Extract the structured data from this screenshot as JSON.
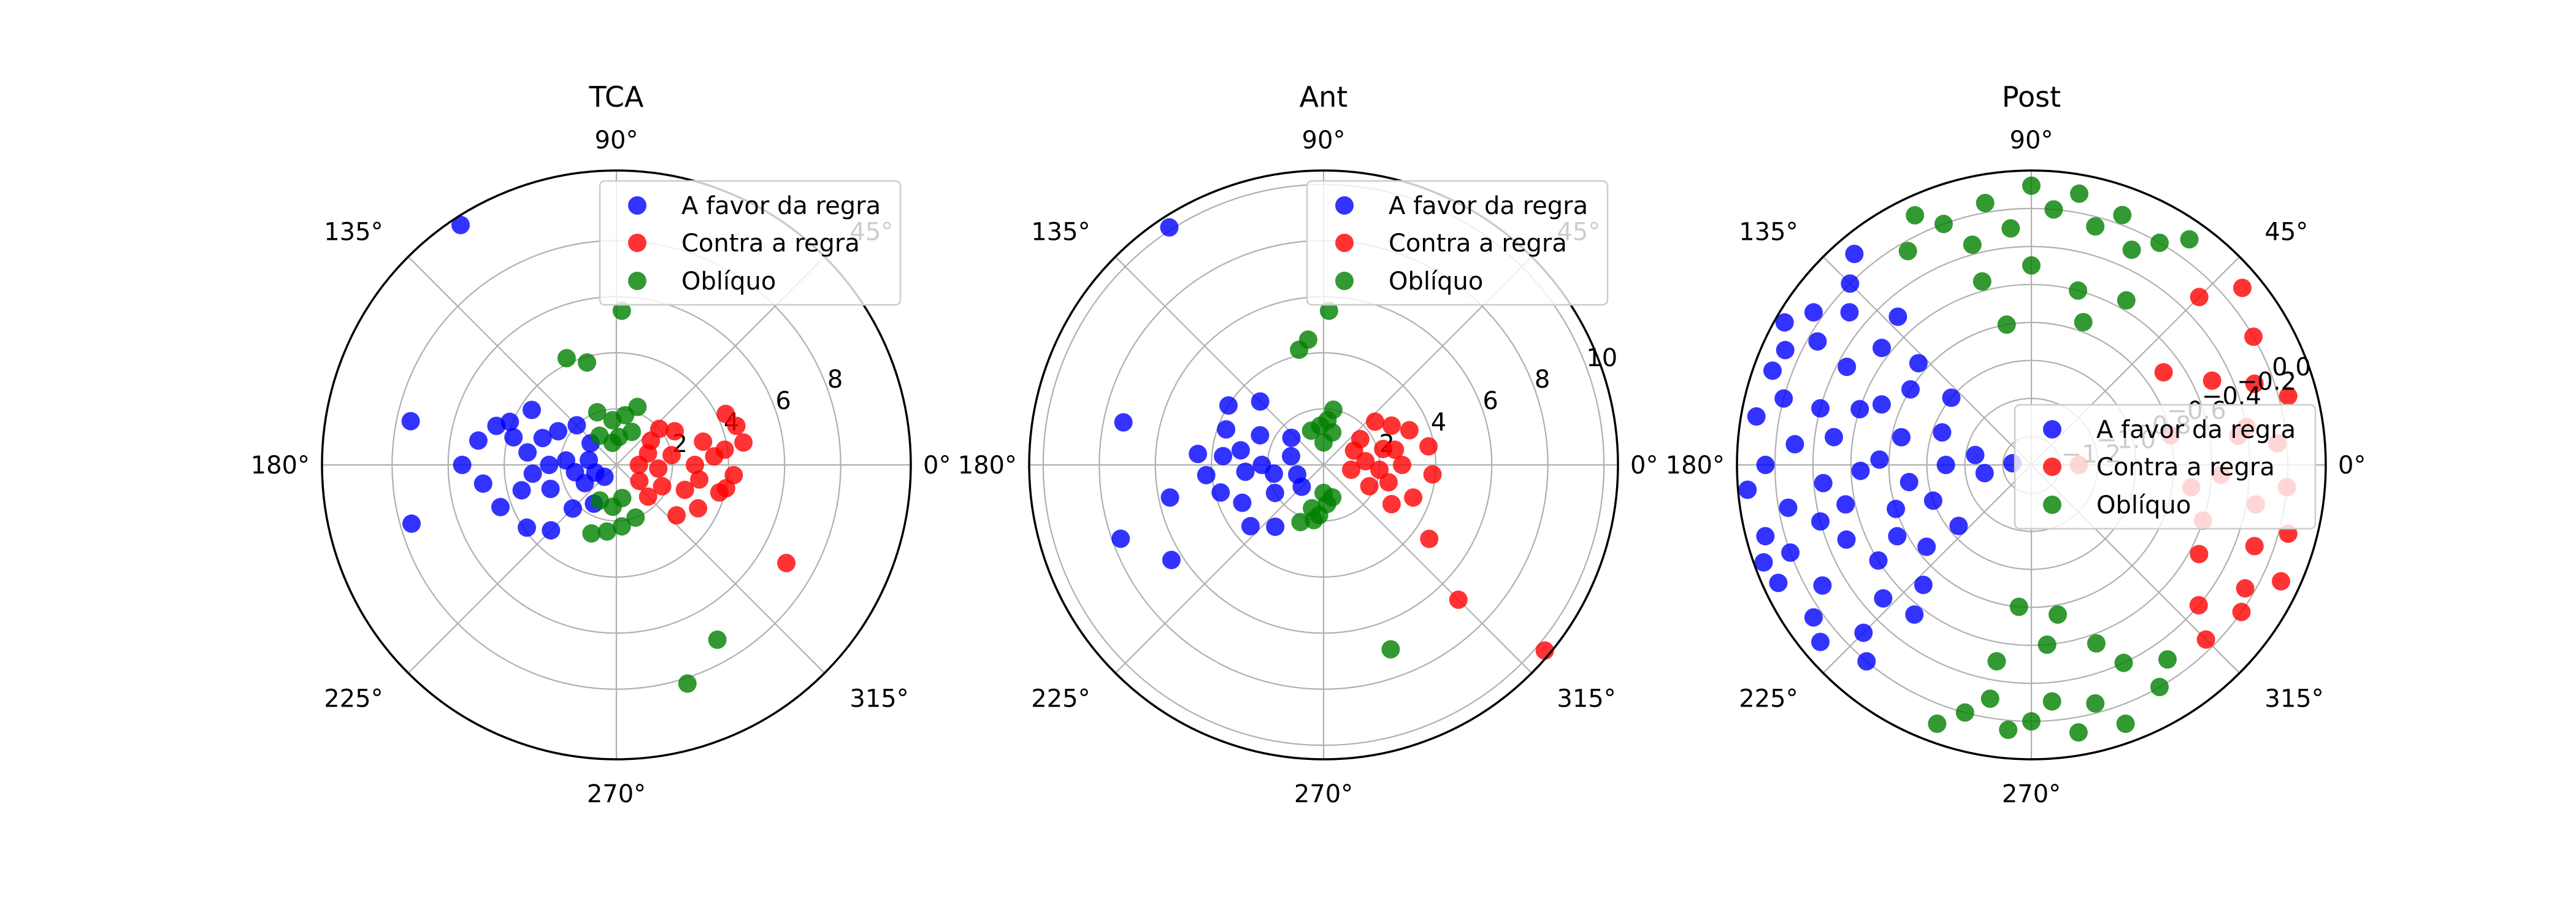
{
  "figure": {
    "background": "#ffffff"
  },
  "legend_labels": [
    "A favor da regra",
    "Contra a regra",
    "Oblíquo"
  ],
  "colors": {
    "A favor da regra": "#0000ff",
    "Contra a regra": "#ff0000",
    "Oblíquo": "#008000"
  },
  "angle_ticks": [
    "0°",
    "45°",
    "90°",
    "135°",
    "180°",
    "225°",
    "270°",
    "315°"
  ],
  "chart_data": [
    {
      "type": "scatter",
      "projection": "polar",
      "title": "TCA",
      "rlim": [
        0,
        10.5
      ],
      "r_ticks": [
        "2",
        "4",
        "6",
        "8"
      ],
      "r_tick_values": [
        2,
        4,
        6,
        8
      ],
      "grid": true,
      "legend_position": "upper right",
      "series": [
        {
          "name": "A favor da regra",
          "points": [
            [
              123,
              10.2
            ],
            [
              168,
              7.5
            ],
            [
              196,
              7.6
            ],
            [
              162,
              4.5
            ],
            [
              147,
              3.6
            ],
            [
              158,
              4.1
            ],
            [
              170,
              5.0
            ],
            [
              180,
              5.5
            ],
            [
              188,
              4.8
            ],
            [
              200,
              4.4
            ],
            [
              215,
              3.9
            ],
            [
              225,
              3.3
            ],
            [
              172,
              3.2
            ],
            [
              186,
              3.0
            ],
            [
              200,
              2.5
            ],
            [
              160,
              2.8
            ],
            [
              150,
              2.4
            ],
            [
              135,
              2.0
            ],
            [
              225,
              2.2
            ],
            [
              240,
              1.6
            ],
            [
              175,
              1.8
            ],
            [
              190,
              1.5
            ],
            [
              210,
              1.3
            ],
            [
              140,
              1.2
            ],
            [
              170,
              1.0
            ],
            [
              200,
              0.8
            ],
            [
              225,
              0.6
            ],
            [
              180,
              2.4
            ],
            [
              195,
              3.5
            ],
            [
              165,
              3.8
            ]
          ]
        },
        {
          "name": "Contra a regra",
          "points": [
            [
              25,
              4.3
            ],
            [
              18,
              4.5
            ],
            [
              10,
              4.6
            ],
            [
              -5,
              4.2
            ],
            [
              -15,
              3.8
            ],
            [
              -28,
              3.3
            ],
            [
              -40,
              2.8
            ],
            [
              -30,
              7.0
            ],
            [
              5,
              3.5
            ],
            [
              15,
              3.2
            ],
            [
              -10,
              3.0
            ],
            [
              -20,
              2.6
            ],
            [
              30,
              2.4
            ],
            [
              40,
              2.0
            ],
            [
              0,
              2.8
            ],
            [
              10,
              2.0
            ],
            [
              -5,
              1.5
            ],
            [
              -25,
              1.8
            ],
            [
              20,
              1.2
            ],
            [
              -35,
              1.0
            ],
            [
              0,
              0.8
            ],
            [
              35,
              1.5
            ],
            [
              -45,
              1.6
            ],
            [
              8,
              3.9
            ],
            [
              -12,
              4.0
            ]
          ]
        },
        {
          "name": "Oblíquo",
          "points": [
            [
              88,
              5.5
            ],
            [
              115,
              4.2
            ],
            [
              106,
              3.8
            ],
            [
              80,
              1.8
            ],
            [
              95,
              1.6
            ],
            [
              70,
              2.2
            ],
            [
              110,
              2.0
            ],
            [
              250,
              2.6
            ],
            [
              262,
              2.4
            ],
            [
              275,
              2.2
            ],
            [
              290,
              2.0
            ],
            [
              300,
              7.2
            ],
            [
              288,
              8.2
            ],
            [
              85,
              1.0
            ],
            [
              100,
              0.8
            ],
            [
              265,
              1.5
            ],
            [
              280,
              1.2
            ],
            [
              65,
              1.3
            ],
            [
              120,
              1.2
            ],
            [
              245,
              1.4
            ]
          ]
        }
      ]
    },
    {
      "type": "scatter",
      "projection": "polar",
      "title": "Ant",
      "rlim": [
        0,
        10.5
      ],
      "r_ticks": [
        "2",
        "4",
        "6",
        "8",
        "10"
      ],
      "r_tick_values": [
        2,
        4,
        6,
        8,
        10
      ],
      "grid": true,
      "legend_position": "upper right",
      "series": [
        {
          "name": "A favor da regra",
          "points": [
            [
              123,
              10.1
            ],
            [
              168,
              7.3
            ],
            [
              200,
              7.7
            ],
            [
              212,
              6.4
            ],
            [
              192,
              5.6
            ],
            [
              175,
              4.5
            ],
            [
              160,
              3.7
            ],
            [
              148,
              4.0
            ],
            [
              135,
              3.2
            ],
            [
              185,
              4.2
            ],
            [
              195,
              3.8
            ],
            [
              205,
              3.2
            ],
            [
              220,
              3.4
            ],
            [
              232,
              2.8
            ],
            [
              170,
              3.0
            ],
            [
              155,
              2.5
            ],
            [
              180,
              2.2
            ],
            [
              190,
              1.8
            ],
            [
              210,
              2.0
            ],
            [
              140,
              1.5
            ],
            [
              165,
              1.2
            ],
            [
              200,
              1.0
            ],
            [
              225,
              1.1
            ],
            [
              175,
              3.6
            ],
            [
              185,
              2.8
            ]
          ]
        },
        {
          "name": "Contra a regra",
          "points": [
            [
              -40,
              10.3
            ],
            [
              -45,
              6.8
            ],
            [
              -35,
              4.6
            ],
            [
              -20,
              3.4
            ],
            [
              -5,
              3.9
            ],
            [
              10,
              3.8
            ],
            [
              22,
              3.3
            ],
            [
              30,
              2.8
            ],
            [
              40,
              2.4
            ],
            [
              0,
              2.8
            ],
            [
              15,
              2.2
            ],
            [
              -15,
              2.4
            ],
            [
              -25,
              1.8
            ],
            [
              5,
              1.5
            ],
            [
              25,
              1.2
            ],
            [
              -10,
              1.0
            ],
            [
              35,
              1.6
            ],
            [
              -30,
              2.8
            ],
            [
              12,
              2.6
            ],
            [
              -5,
              2.0
            ]
          ]
        },
        {
          "name": "Oblíquo",
          "points": [
            [
              88,
              5.5
            ],
            [
              97,
              4.5
            ],
            [
              102,
              4.2
            ],
            [
              85,
              1.6
            ],
            [
              95,
              1.4
            ],
            [
              75,
              1.2
            ],
            [
              110,
              1.3
            ],
            [
              255,
              1.6
            ],
            [
              265,
              1.8
            ],
            [
              275,
              1.4
            ],
            [
              285,
              1.2
            ],
            [
              290,
              7.0
            ],
            [
              248,
              2.2
            ],
            [
              260,
              2.0
            ],
            [
              90,
              0.8
            ],
            [
              80,
              2.0
            ],
            [
              270,
              1.0
            ]
          ]
        }
      ]
    },
    {
      "type": "scatter",
      "projection": "polar",
      "title": "Post",
      "rlim": [
        -1.35,
        0.2
      ],
      "r_ticks": [
        "−1.2",
        "−1.0",
        "−0.8",
        "−0.6",
        "−0.4",
        "−0.2",
        "0.0"
      ],
      "r_tick_values": [
        -1.2,
        -1.0,
        -0.8,
        -0.6,
        -0.4,
        -0.2,
        0.0
      ],
      "grid": true,
      "legend_position": "center right",
      "series": [
        {
          "name": "A favor da regra",
          "points": [
            [
              130,
              0.1
            ],
            [
              135,
              0.0
            ],
            [
              140,
              -0.1
            ],
            [
              145,
              0.05
            ],
            [
              150,
              -0.05
            ],
            [
              155,
              0.08
            ],
            [
              160,
              0.1
            ],
            [
              165,
              0.0
            ],
            [
              170,
              0.12
            ],
            [
              175,
              -0.1
            ],
            [
              180,
              0.05
            ],
            [
              185,
              0.15
            ],
            [
              190,
              -0.05
            ],
            [
              195,
              0.1
            ],
            [
              200,
              0.0
            ],
            [
              205,
              0.12
            ],
            [
              210,
              -0.08
            ],
            [
              215,
              0.05
            ],
            [
              220,
              0.1
            ],
            [
              225,
              -0.1
            ],
            [
              230,
              0.0
            ],
            [
              132,
              -0.3
            ],
            [
              142,
              -0.35
            ],
            [
              152,
              -0.25
            ],
            [
              162,
              -0.4
            ],
            [
              172,
              -0.3
            ],
            [
              182,
              -0.45
            ],
            [
              192,
              -0.35
            ],
            [
              202,
              -0.3
            ],
            [
              212,
              -0.4
            ],
            [
              222,
              -0.3
            ],
            [
              232,
              -0.35
            ],
            [
              138,
              -0.55
            ],
            [
              148,
              -0.6
            ],
            [
              158,
              -0.5
            ],
            [
              168,
              -0.65
            ],
            [
              178,
              -0.55
            ],
            [
              188,
              -0.7
            ],
            [
              198,
              -0.6
            ],
            [
              208,
              -0.55
            ],
            [
              218,
              -0.65
            ],
            [
              228,
              -0.5
            ],
            [
              140,
              -0.8
            ],
            [
              160,
              -0.85
            ],
            [
              180,
              -0.9
            ],
            [
              200,
              -0.8
            ],
            [
              220,
              -0.85
            ],
            [
              170,
              -1.05
            ],
            [
              190,
              -1.1
            ],
            [
              175,
              -1.25
            ],
            [
              165,
              -0.2
            ],
            [
              185,
              -0.25
            ],
            [
              195,
              -0.2
            ],
            [
              150,
              0.15
            ],
            [
              200,
              0.15
            ]
          ]
        },
        {
          "name": "Contra a regra",
          "points": [
            [
              40,
              0.1
            ],
            [
              30,
              0.0
            ],
            [
              20,
              -0.1
            ],
            [
              15,
              0.05
            ],
            [
              10,
              -0.2
            ],
            [
              5,
              -0.05
            ],
            [
              -5,
              0.0
            ],
            [
              -10,
              -0.15
            ],
            [
              -15,
              0.05
            ],
            [
              -20,
              -0.1
            ],
            [
              -25,
              0.1
            ],
            [
              -30,
              -0.05
            ],
            [
              -35,
              0.0
            ],
            [
              -40,
              -0.2
            ],
            [
              25,
              -0.3
            ],
            [
              -28,
              -0.35
            ],
            [
              35,
              -0.5
            ],
            [
              -18,
              -0.4
            ],
            [
              45,
              -0.1
            ],
            [
              -45,
              -0.05
            ],
            [
              12,
              -0.6
            ],
            [
              -8,
              -0.5
            ],
            [
              0,
              -1.1
            ],
            [
              8,
              -0.25
            ],
            [
              -3,
              -0.35
            ]
          ]
        },
        {
          "name": "Oblíquo",
          "points": [
            [
              55,
              0.1
            ],
            [
              60,
              0.0
            ],
            [
              65,
              -0.1
            ],
            [
              70,
              0.05
            ],
            [
              75,
              -0.05
            ],
            [
              80,
              0.1
            ],
            [
              85,
              0.0
            ],
            [
              90,
              0.12
            ],
            [
              95,
              -0.1
            ],
            [
              100,
              0.05
            ],
            [
              105,
              -0.15
            ],
            [
              110,
              0.0
            ],
            [
              115,
              0.1
            ],
            [
              120,
              -0.05
            ],
            [
              60,
              -0.35
            ],
            [
              75,
              -0.4
            ],
            [
              90,
              -0.3
            ],
            [
              105,
              -0.35
            ],
            [
              70,
              -0.55
            ],
            [
              100,
              -0.6
            ],
            [
              250,
              0.1
            ],
            [
              255,
              0.0
            ],
            [
              260,
              -0.1
            ],
            [
              265,
              0.05
            ],
            [
              270,
              0.0
            ],
            [
              275,
              -0.1
            ],
            [
              280,
              0.08
            ],
            [
              285,
              -0.05
            ],
            [
              290,
              0.1
            ],
            [
              295,
              -0.2
            ],
            [
              300,
              0.0
            ],
            [
              305,
              -0.1
            ],
            [
              260,
              -0.3
            ],
            [
              275,
              -0.4
            ],
            [
              290,
              -0.35
            ],
            [
              265,
              -0.6
            ],
            [
              280,
              -0.55
            ]
          ]
        }
      ]
    }
  ]
}
